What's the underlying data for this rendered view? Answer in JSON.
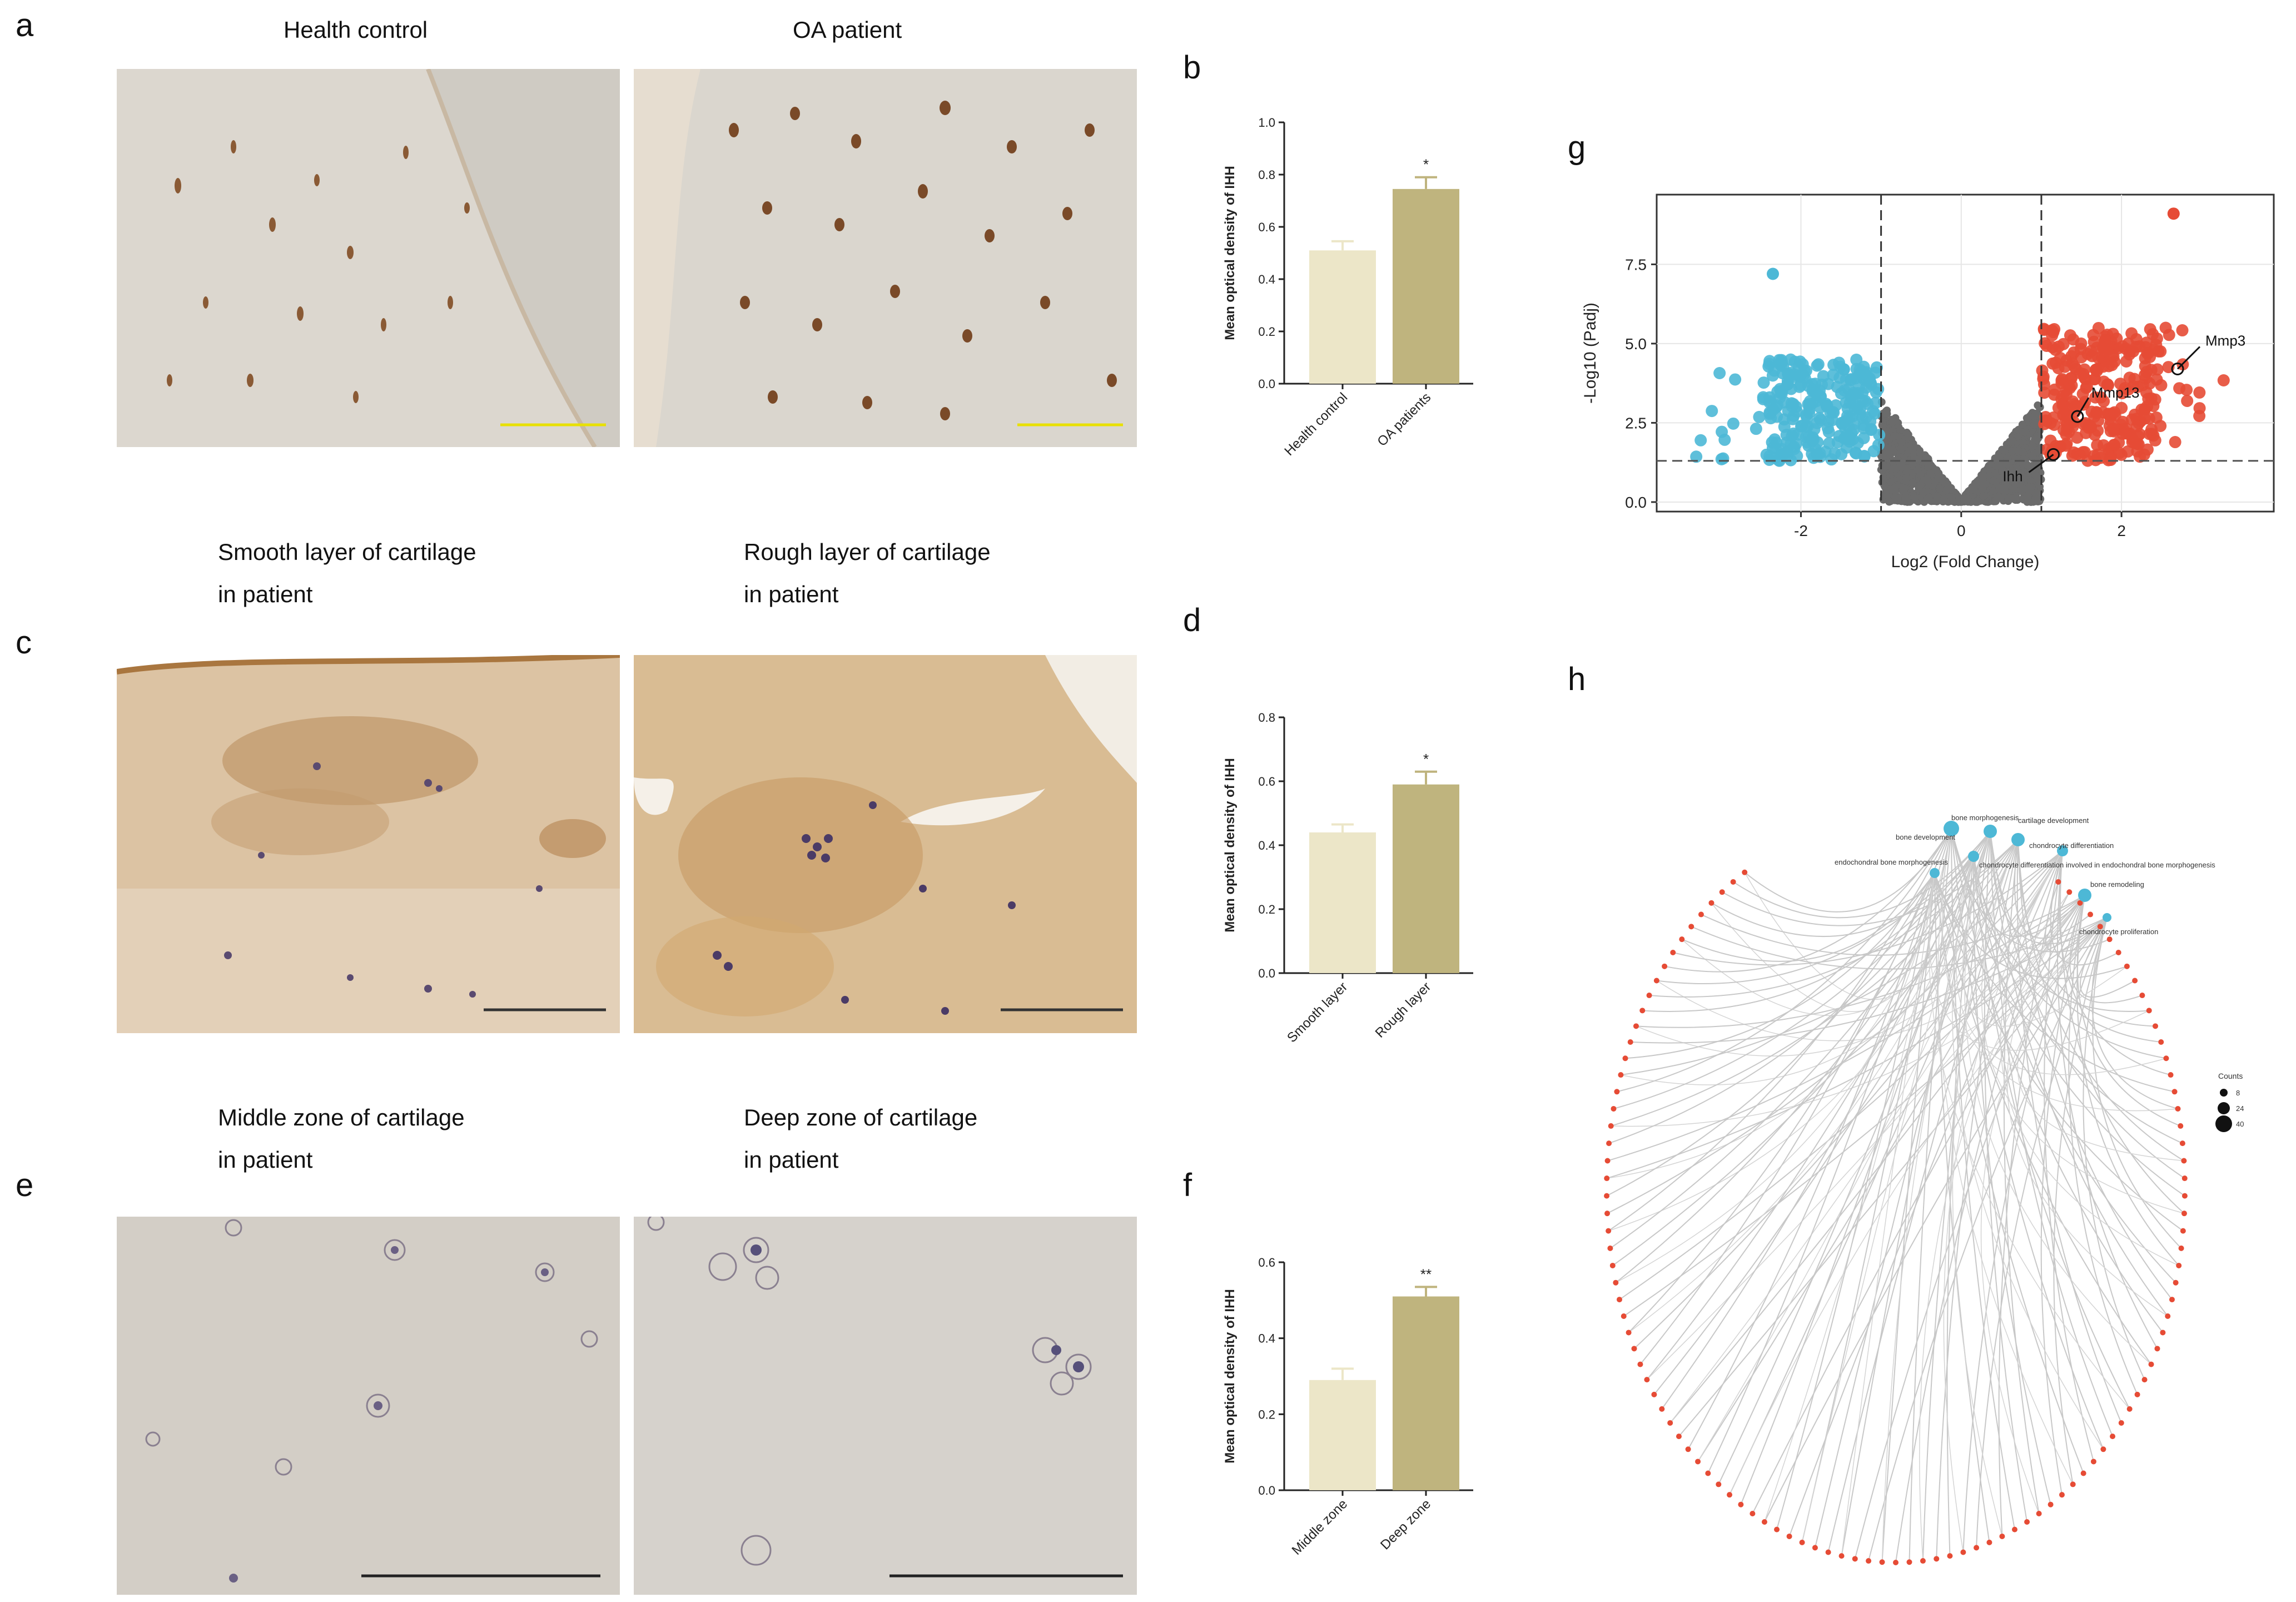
{
  "panels": {
    "a": {
      "letter": "a",
      "left_caption": "Health control",
      "right_caption": "OA patient"
    },
    "b": {
      "letter": "b"
    },
    "c": {
      "letter": "c",
      "left_caption_1": "Smooth layer of cartilage",
      "left_caption_2": "in patient",
      "right_caption_1": "Rough layer of cartilage",
      "right_caption_2": "in patient"
    },
    "d": {
      "letter": "d"
    },
    "e": {
      "letter": "e",
      "left_caption_1": "Middle zone of cartilage",
      "left_caption_2": "in patient",
      "right_caption_1": "Deep zone of cartilage",
      "right_caption_2": "in patient"
    },
    "f": {
      "letter": "f"
    },
    "g": {
      "letter": "g"
    },
    "h": {
      "letter": "h"
    }
  },
  "colors": {
    "bar_light": "#ece6c8",
    "bar_dark": "#bfb47e",
    "volcano_down": "#4db8d6",
    "volcano_up": "#e64b35",
    "volcano_ns": "#6b6b6b"
  },
  "chart_data": [
    {
      "id": "b",
      "type": "bar",
      "ylabel": "Mean optical density of IHH",
      "categories": [
        "Health control",
        "OA patients"
      ],
      "values": [
        0.51,
        0.745
      ],
      "errors": [
        0.035,
        0.045
      ],
      "significance": "*",
      "ylim": [
        0,
        1.0
      ],
      "yticks": [
        "0.0",
        "0.2",
        "0.4",
        "0.6",
        "0.8",
        "1.0"
      ]
    },
    {
      "id": "d",
      "type": "bar",
      "ylabel": "Mean optical density of IHH",
      "categories": [
        "Smooth layer",
        "Rough layer"
      ],
      "values": [
        0.44,
        0.59
      ],
      "errors": [
        0.025,
        0.04
      ],
      "significance": "*",
      "ylim": [
        0,
        0.8
      ],
      "yticks": [
        "0.0",
        "0.2",
        "0.4",
        "0.6",
        "0.8"
      ]
    },
    {
      "id": "f",
      "type": "bar",
      "ylabel": "Mean optical density of IHH",
      "categories": [
        "Middle zone",
        "Deep zone"
      ],
      "values": [
        0.29,
        0.51
      ],
      "errors": [
        0.03,
        0.025
      ],
      "significance": "**",
      "ylim": [
        0,
        0.6
      ],
      "yticks": [
        "0.0",
        "0.2",
        "0.4",
        "0.6"
      ]
    },
    {
      "id": "g",
      "type": "scatter",
      "xlabel": "Log2 (Fold Change)",
      "ylabel": "-Log10 (Padj)",
      "xticks": [
        "-2",
        "0",
        "2"
      ],
      "xtick_values": [
        -2,
        0,
        2
      ],
      "yticks": [
        "0.0",
        "2.5",
        "5.0",
        "7.5"
      ],
      "ytick_values": [
        0,
        2.5,
        5.0,
        7.5
      ],
      "xlim": [
        -3.8,
        3.9
      ],
      "ylim": [
        -0.3,
        9.7
      ],
      "thresholds": {
        "fc": [
          -1,
          1
        ],
        "padj_log10": 1.3
      },
      "labeled_genes": [
        {
          "name": "Mmp3",
          "x": 2.7,
          "y": 4.2
        },
        {
          "name": "Mmp13",
          "x": 1.45,
          "y": 2.7
        },
        {
          "name": "Ihh",
          "x": 1.15,
          "y": 1.5
        }
      ]
    }
  ],
  "network_h": {
    "legend_title": "Counts",
    "legend_entries": [
      "8",
      "24",
      "40"
    ],
    "terms": [
      "bone morphogenesis",
      "cartilage development",
      "bone development",
      "chondrocyte differentiation",
      "endochondral bone morphogenesis",
      "chondrocyte differentiation involved in endochondral bone morphogenesis",
      "bone remodeling",
      "chondrocyte proliferation"
    ]
  }
}
